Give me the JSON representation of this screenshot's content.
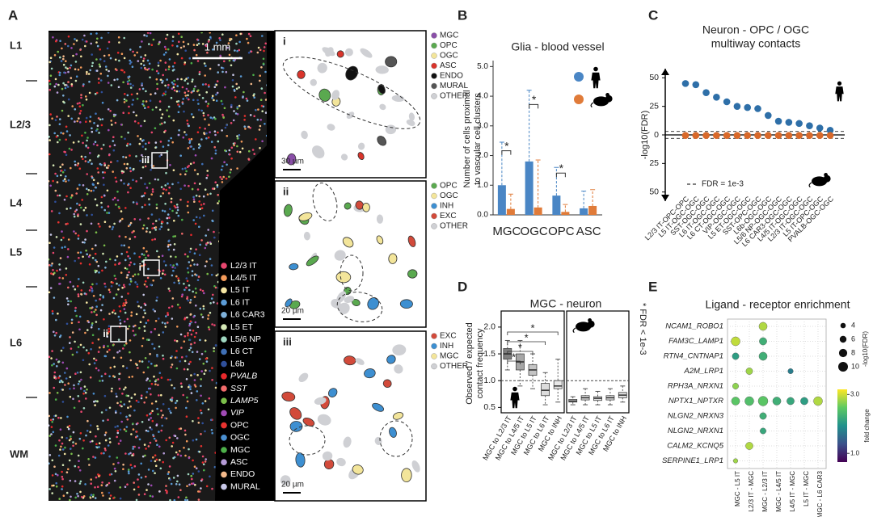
{
  "panel_a": {
    "letter": "A",
    "layers": [
      "L1",
      "L2/3",
      "L4",
      "L5",
      "L6",
      "WM"
    ],
    "scale_bar": "1 mm",
    "box_labels": [
      "iii",
      "i",
      "ii"
    ],
    "legend": [
      {
        "name": "L2/3 IT",
        "color": "#e8466f"
      },
      {
        "name": "L4/5 IT",
        "color": "#f39a5a"
      },
      {
        "name": "L5 IT",
        "color": "#f5e6a3"
      },
      {
        "name": "L6 IT",
        "color": "#5b9bd5"
      },
      {
        "name": "L6 CAR3",
        "color": "#7eb0d9"
      },
      {
        "name": "L5 ET",
        "color": "#d4e6b5"
      },
      {
        "name": "L5/6 NP",
        "color": "#9fd7c0"
      },
      {
        "name": "L6 CT",
        "color": "#3f6fb5"
      },
      {
        "name": "L6b",
        "color": "#2f4f9a"
      },
      {
        "name": "PVALB",
        "color": "#e8282b",
        "italic": true
      },
      {
        "name": "SST",
        "color": "#f26b6b",
        "italic": true
      },
      {
        "name": "LAMP5",
        "color": "#7bbf4a",
        "italic": true
      },
      {
        "name": "VIP",
        "color": "#a04ab5",
        "italic": true
      },
      {
        "name": "OPC",
        "color": "#e8322f"
      },
      {
        "name": "OGC",
        "color": "#4a8fd0"
      },
      {
        "name": "MGC",
        "color": "#4db04a"
      },
      {
        "name": "ASC",
        "color": "#b49ad6"
      },
      {
        "name": "ENDO",
        "color": "#f3b98b"
      },
      {
        "name": "MURAL",
        "color": "#c8c8e8"
      }
    ],
    "insets": [
      {
        "label": "i",
        "scale": "30 µm",
        "legend": [
          {
            "name": "MGC",
            "color": "#8a4fa8"
          },
          {
            "name": "OPC",
            "color": "#5aa94f"
          },
          {
            "name": "OGC",
            "color": "#f3e59a"
          },
          {
            "name": "ASC",
            "color": "#d9342b"
          },
          {
            "name": "ENDO",
            "color": "#111111"
          },
          {
            "name": "MURAL",
            "color": "#555555"
          },
          {
            "name": "OTHER",
            "color": "#cfd0d4"
          }
        ]
      },
      {
        "label": "ii",
        "scale": "20 µm",
        "legend": [
          {
            "name": "OPC",
            "color": "#5aa94f"
          },
          {
            "name": "OGC",
            "color": "#f3e59a"
          },
          {
            "name": "INH",
            "color": "#3d8fd1"
          },
          {
            "name": "EXC",
            "color": "#d24a3a"
          },
          {
            "name": "OTHER",
            "color": "#cfd0d4"
          }
        ]
      },
      {
        "label": "iii",
        "scale": "20 µm",
        "legend": [
          {
            "name": "EXC",
            "color": "#d24a3a"
          },
          {
            "name": "INH",
            "color": "#3d8fd1"
          },
          {
            "name": "MGC",
            "color": "#f3e59a"
          },
          {
            "name": "OTHER",
            "color": "#cfd0d4"
          }
        ]
      }
    ]
  },
  "chart_data": [
    {
      "panel": "B",
      "type": "bar",
      "title": "Glia - blood vessel",
      "ylabel": [
        "Number of cells proximal",
        "to vascular cell clusters"
      ],
      "categories": [
        "MGC",
        "OGC",
        "OPC",
        "ASC"
      ],
      "series": [
        {
          "color": "#4a86c5",
          "values": [
            1.0,
            1.8,
            0.65,
            0.22
          ],
          "errors": [
            1.45,
            2.4,
            0.95,
            0.58
          ]
        },
        {
          "color": "#e07b39",
          "values": [
            0.2,
            0.25,
            0.1,
            0.3
          ],
          "errors": [
            0.5,
            1.6,
            0.25,
            0.55
          ]
        }
      ],
      "significance": [
        "*",
        "*",
        "*",
        null
      ],
      "ylim": [
        0,
        5.2
      ],
      "yticks": [
        {
          "value": 0,
          "label": "0.0"
        },
        {
          "value": 1,
          "label": "1.0"
        },
        {
          "value": 2,
          "label": "2.0"
        },
        {
          "value": 3,
          "label": "3.0"
        },
        {
          "value": 4,
          "label": "4.0"
        },
        {
          "value": 5,
          "label": "5.0"
        }
      ]
    },
    {
      "panel": "C",
      "type": "dot",
      "title": [
        "Neuron - OPC / OGC",
        "multiway contacts"
      ],
      "ylabel": "-log10(FDR)",
      "categories": [
        "L2/3 IT-OPC-OPC",
        "L5 IT-OGC-OGC",
        "SST-OGC-OGC",
        "L6 IT-OGC-OGC",
        "L6 CT-OGC-OGC",
        "VIP-OGC-OGC",
        "L5 ET-OGC-OGC",
        "SST-OPC-OGC",
        "L6b-OGC-OGC",
        "L5/6 NP-OGC-OGC",
        "L6 CAR3-OGC-OGC",
        "L4/5 IT-OGC-OGC",
        "L2/3 IT-OGC-OGC",
        "L5 IT-OPC-OGC",
        "PVALB-OGC-OGC"
      ],
      "series": [
        {
          "color": "#2e6fa8",
          "values": [
            45,
            44,
            37,
            33,
            29,
            25,
            24,
            23,
            17,
            12,
            11,
            10,
            8,
            6,
            4
          ]
        },
        {
          "color": "#d9692a",
          "values": [
            -0.5,
            -0.5,
            -0.5,
            -0.5,
            -0.5,
            -0.5,
            -0.5,
            -0.5,
            -0.5,
            -0.5,
            -0.5,
            -0.5,
            -0.5,
            -0.5,
            -0.5
          ]
        }
      ],
      "threshold": {
        "label": "FDR = 1e-3",
        "value": 3
      },
      "ylim": [
        -58,
        58
      ],
      "yticks": [
        50,
        25,
        0,
        {
          "value": -25,
          "label": "25"
        },
        {
          "value": -50,
          "label": "50"
        }
      ]
    },
    {
      "panel": "D",
      "type": "box",
      "title": "MGC - neuron",
      "ylabel": [
        "Observed / expected",
        "contact frequency"
      ],
      "note": "* FDR < 1e-3",
      "groups": [
        {
          "categories": [
            "MGC to L2/3 IT",
            "MGC to L4/5 IT",
            "MGC to L5 IT",
            "MGC to L6 IT",
            "MGC to INH"
          ],
          "colors": [
            "#7f7f7f",
            "#a6a6a6",
            "#c4c4c4",
            "#dcdcdc",
            "#e8e8e8"
          ],
          "boxes": [
            {
              "low": 1.2,
              "q1": 1.4,
              "median": 1.5,
              "q3": 1.6,
              "high": 1.75
            },
            {
              "low": 0.9,
              "q1": 1.2,
              "median": 1.35,
              "q3": 1.5,
              "high": 1.75
            },
            {
              "low": 0.85,
              "q1": 1.1,
              "median": 1.2,
              "q3": 1.3,
              "high": 1.5
            },
            {
              "low": 0.55,
              "q1": 0.72,
              "median": 0.82,
              "q3": 0.95,
              "high": 1.15
            },
            {
              "low": 0.6,
              "q1": 0.85,
              "median": 0.9,
              "q3": 1.0,
              "high": 1.4
            }
          ]
        },
        {
          "categories": [
            "MGC to L2/3 IT",
            "MGC to L4/5 IT",
            "MGC to L5 IT",
            "MGC to L6 IT",
            "MGC to INH"
          ],
          "colors": [
            "#e0e0e0",
            "#e0e0e0",
            "#e0e0e0",
            "#e0e0e0",
            "#e0e0e0"
          ],
          "boxes": [
            {
              "low": 0.55,
              "q1": 0.6,
              "median": 0.62,
              "q3": 0.65,
              "high": 0.7
            },
            {
              "low": 0.55,
              "q1": 0.64,
              "median": 0.68,
              "q3": 0.72,
              "high": 0.85
            },
            {
              "low": 0.55,
              "q1": 0.63,
              "median": 0.67,
              "q3": 0.7,
              "high": 0.8
            },
            {
              "low": 0.55,
              "q1": 0.64,
              "median": 0.68,
              "q3": 0.72,
              "high": 0.85
            },
            {
              "low": 0.6,
              "q1": 0.68,
              "median": 0.73,
              "q3": 0.78,
              "high": 0.9
            }
          ]
        }
      ],
      "stars": [
        "*",
        "*",
        "*",
        "*"
      ],
      "ref_line": 1,
      "ylim": [
        0.4,
        2.3
      ],
      "yticks": [
        0.5,
        {
          "value": 1,
          "label": "1.0"
        },
        1.5,
        {
          "value": 2,
          "label": "2.0"
        }
      ]
    },
    {
      "panel": "E",
      "type": "dotmatrix",
      "title": "Ligand - receptor enrichment",
      "rows": [
        "NCAM1_ROBO1",
        "FAM3C_LAMP1",
        "RTN4_CNTNAP1",
        "A2M_LRP1",
        "RPH3A_NRXN1",
        "NPTX1_NPTXR",
        "NLGN2_NRXN3",
        "NLGN2_NRXN1",
        "CALM2_KCNQ5",
        "SERPINE1_LRP1"
      ],
      "columns": [
        "MGC - L5 IT",
        "L2/3 IT - MGC",
        "MGC - L2/3 IT",
        "MGC - L4/5 IT",
        "L4/5 IT - MGC",
        "L5 IT - MGC",
        "MGC - L6 CAR3"
      ],
      "size": [
        [
          null,
          null,
          8,
          null,
          null,
          null,
          null
        ],
        [
          9,
          null,
          7,
          null,
          null,
          null,
          null
        ],
        [
          6,
          null,
          8,
          null,
          null,
          null,
          null
        ],
        [
          null,
          6,
          null,
          null,
          4,
          null,
          null
        ],
        [
          5,
          null,
          null,
          null,
          null,
          null,
          null
        ],
        [
          8,
          9,
          10,
          8,
          7,
          7,
          9
        ],
        [
          null,
          null,
          6,
          null,
          null,
          null,
          null
        ],
        [
          null,
          null,
          5,
          null,
          null,
          null,
          null
        ],
        [
          null,
          7,
          null,
          null,
          null,
          null,
          null
        ],
        [
          3,
          null,
          null,
          null,
          null,
          null,
          null
        ]
      ],
      "fold_change": [
        [
          null,
          null,
          2.8,
          null,
          null,
          null,
          null
        ],
        [
          2.9,
          null,
          2.0,
          null,
          null,
          null,
          null
        ],
        [
          1.8,
          null,
          2.0,
          null,
          null,
          null,
          null
        ],
        [
          null,
          2.7,
          null,
          null,
          1.5,
          null,
          null
        ],
        [
          2.6,
          null,
          null,
          null,
          null,
          null,
          null
        ],
        [
          2.3,
          2.2,
          2.3,
          2.0,
          1.9,
          1.8,
          2.8
        ],
        [
          null,
          null,
          2.0,
          null,
          null,
          null,
          null
        ],
        [
          null,
          null,
          1.9,
          null,
          null,
          null,
          null
        ],
        [
          null,
          2.8,
          null,
          null,
          null,
          null,
          null
        ],
        [
          2.7,
          null,
          null,
          null,
          null,
          null,
          null
        ]
      ],
      "size_legend": {
        "title": "-log10(FDR)",
        "values": [
          4,
          6,
          8,
          10
        ]
      },
      "color_legend": {
        "title": "fold change",
        "log": true,
        "lim": [
          0.85,
          3.3
        ],
        "ticks": [
          {
            "value": 3,
            "label": "3.0"
          },
          {
            "value": 1,
            "label": "1.0"
          }
        ]
      }
    }
  ]
}
